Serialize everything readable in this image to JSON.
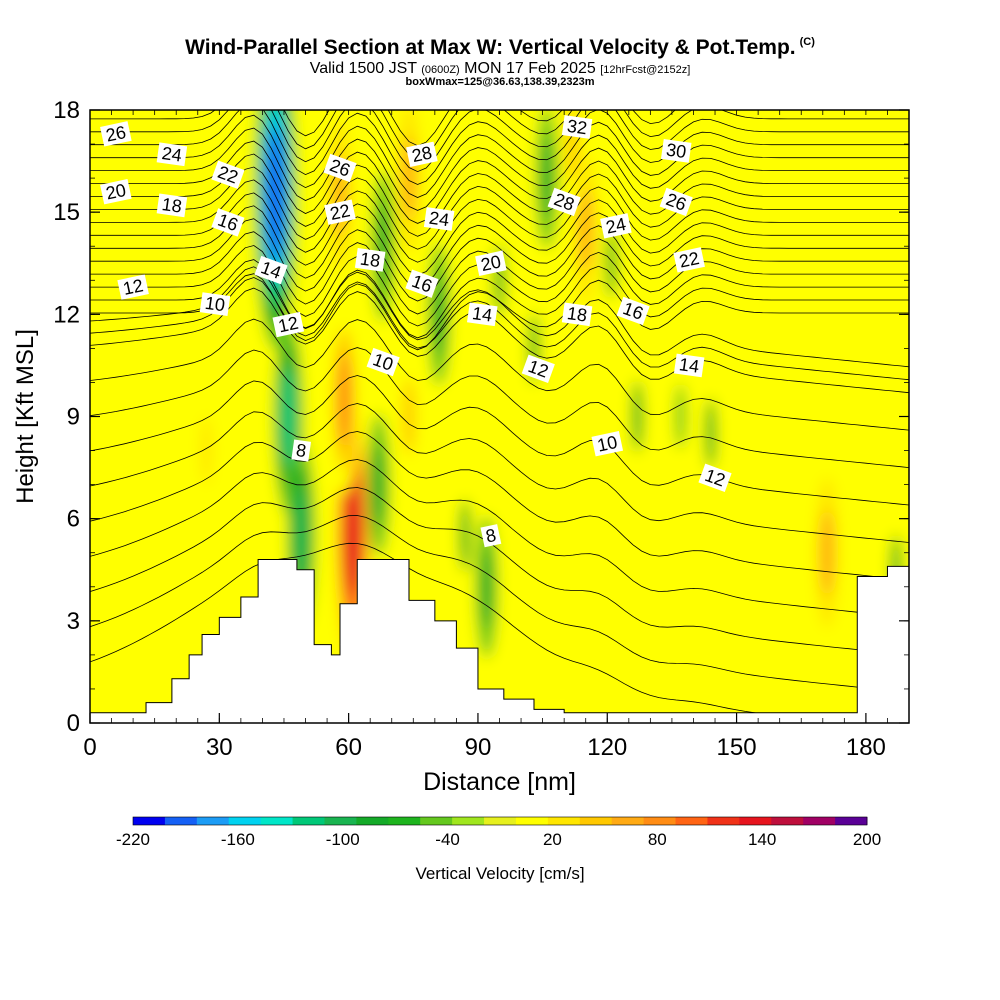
{
  "title": {
    "main": "Wind-Parallel Section at Max W: Vertical Velocity & Pot.Temp.",
    "mark": "(C)",
    "valid_prefix": "Valid 1500 JST",
    "valid_utc": "(0600Z)",
    "valid_date": "MON 17 Feb 2025",
    "forecast": "[12hrFcst@2152z]",
    "box_info": "boxWmax=125@36.63,138.39,2323m"
  },
  "chart_data": {
    "type": "heatmap",
    "xlabel": "Distance [nm]",
    "ylabel": "Height [Kft MSL]",
    "xlim": [
      0,
      190
    ],
    "ylim": [
      0,
      18
    ],
    "xticks": [
      "0",
      "30",
      "60",
      "90",
      "120",
      "150",
      "180"
    ],
    "yticks": [
      "0",
      "3",
      "6",
      "9",
      "12",
      "15",
      "18"
    ],
    "xtick_values": [
      0,
      30,
      60,
      90,
      120,
      150,
      180
    ],
    "ytick_values": [
      0,
      3,
      6,
      9,
      12,
      15,
      18
    ],
    "colorbar": {
      "label": "Vertical Velocity [cm/s]",
      "min": -220,
      "max": 200,
      "step": 20,
      "tick_labels": [
        "-220",
        "-160",
        "-100",
        "-40",
        "20",
        "80",
        "140",
        "200"
      ],
      "colors": [
        "#0000f0",
        "#1560f5",
        "#1c9cf5",
        "#00d2f0",
        "#00e6c8",
        "#00c878",
        "#19b450",
        "#14aa28",
        "#1eb41e",
        "#64c81e",
        "#a0e61e",
        "#e6f01e",
        "#ffff00",
        "#ffe600",
        "#ffc800",
        "#ffaa14",
        "#ff8c14",
        "#ff6414",
        "#f03218",
        "#e6141e",
        "#be0f3c",
        "#a00064",
        "#5a0096"
      ]
    },
    "velocity_features_cm_s": [
      {
        "x_nm": 43,
        "y_kft": 15.5,
        "peak": -200
      },
      {
        "x_nm": 46,
        "y_kft": 9.0,
        "peak": -110
      },
      {
        "x_nm": 49,
        "y_kft": 5.5,
        "peak": -100
      },
      {
        "x_nm": 61,
        "y_kft": 5.5,
        "peak": 160
      },
      {
        "x_nm": 59,
        "y_kft": 9.5,
        "peak": 100
      },
      {
        "x_nm": 58,
        "y_kft": 15.5,
        "peak": 80
      },
      {
        "x_nm": 68,
        "y_kft": 14.0,
        "peak": -80
      },
      {
        "x_nm": 67,
        "y_kft": 7.0,
        "peak": -70
      },
      {
        "x_nm": 74,
        "y_kft": 9.0,
        "peak": 60
      },
      {
        "x_nm": 74,
        "y_kft": 16.0,
        "peak": 80
      },
      {
        "x_nm": 81,
        "y_kft": 12.0,
        "peak": -70
      },
      {
        "x_nm": 87,
        "y_kft": 5.5,
        "peak": -50
      },
      {
        "x_nm": 92,
        "y_kft": 4.0,
        "peak": -70
      },
      {
        "x_nm": 95,
        "y_kft": 13.0,
        "peak": -50
      },
      {
        "x_nm": 103,
        "y_kft": 11.0,
        "peak": -45
      },
      {
        "x_nm": 106,
        "y_kft": 16.0,
        "peak": -70
      },
      {
        "x_nm": 115,
        "y_kft": 14.5,
        "peak": 80
      },
      {
        "x_nm": 112,
        "y_kft": 17.0,
        "peak": 60
      },
      {
        "x_nm": 121,
        "y_kft": 13.5,
        "peak": -45
      },
      {
        "x_nm": 127,
        "y_kft": 9.0,
        "peak": -50
      },
      {
        "x_nm": 132,
        "y_kft": 14.0,
        "peak": 30
      },
      {
        "x_nm": 137,
        "y_kft": 9.0,
        "peak": -35
      },
      {
        "x_nm": 144,
        "y_kft": 8.5,
        "peak": -45
      },
      {
        "x_nm": 171,
        "y_kft": 5.0,
        "peak": 80
      },
      {
        "x_nm": 27,
        "y_kft": 8.0,
        "peak": 40
      },
      {
        "x_nm": 19,
        "y_kft": 10.0,
        "peak": 30
      },
      {
        "x_nm": 161,
        "y_kft": 9.0,
        "peak": 25
      },
      {
        "x_nm": 187,
        "y_kft": 4.5,
        "peak": -45
      }
    ],
    "terrain_kft": [
      [
        0,
        0.3
      ],
      [
        10,
        0.3
      ],
      [
        13,
        0.6
      ],
      [
        19,
        1.3
      ],
      [
        23,
        2.0
      ],
      [
        26,
        2.6
      ],
      [
        30,
        3.1
      ],
      [
        35,
        3.7
      ],
      [
        39,
        4.8
      ],
      [
        45,
        4.8
      ],
      [
        48,
        4.5
      ],
      [
        52,
        2.3
      ],
      [
        56,
        2.0
      ],
      [
        58,
        3.5
      ],
      [
        62,
        4.8
      ],
      [
        70,
        4.8
      ],
      [
        74,
        3.6
      ],
      [
        80,
        3.0
      ],
      [
        85,
        2.2
      ],
      [
        90,
        1.0
      ],
      [
        96,
        0.7
      ],
      [
        103,
        0.4
      ],
      [
        110,
        0.3
      ],
      [
        175,
        0.3
      ],
      [
        178,
        4.3
      ],
      [
        185,
        4.6
      ],
      [
        190,
        4.6
      ]
    ],
    "theta_contour_labels": [
      {
        "text": "26",
        "x_nm": 6,
        "y_kft": 17.3
      },
      {
        "text": "24",
        "x_nm": 19,
        "y_kft": 16.7
      },
      {
        "text": "22",
        "x_nm": 32,
        "y_kft": 16.1
      },
      {
        "text": "20",
        "x_nm": 6,
        "y_kft": 15.6
      },
      {
        "text": "18",
        "x_nm": 19,
        "y_kft": 15.2
      },
      {
        "text": "16",
        "x_nm": 32,
        "y_kft": 14.7
      },
      {
        "text": "12",
        "x_nm": 10,
        "y_kft": 12.8
      },
      {
        "text": "10",
        "x_nm": 29,
        "y_kft": 12.3
      },
      {
        "text": "14",
        "x_nm": 42,
        "y_kft": 13.3
      },
      {
        "text": "12",
        "x_nm": 46,
        "y_kft": 11.7
      },
      {
        "text": "8",
        "x_nm": 49,
        "y_kft": 8.0
      },
      {
        "text": "26",
        "x_nm": 58,
        "y_kft": 16.3
      },
      {
        "text": "22",
        "x_nm": 58,
        "y_kft": 15.0
      },
      {
        "text": "18",
        "x_nm": 65,
        "y_kft": 13.6
      },
      {
        "text": "10",
        "x_nm": 68,
        "y_kft": 10.6
      },
      {
        "text": "28",
        "x_nm": 77,
        "y_kft": 16.7
      },
      {
        "text": "24",
        "x_nm": 81,
        "y_kft": 14.8
      },
      {
        "text": "16",
        "x_nm": 77,
        "y_kft": 12.9
      },
      {
        "text": "20",
        "x_nm": 93,
        "y_kft": 13.5
      },
      {
        "text": "14",
        "x_nm": 91,
        "y_kft": 12.0
      },
      {
        "text": "12",
        "x_nm": 104,
        "y_kft": 10.4
      },
      {
        "text": "8",
        "x_nm": 93,
        "y_kft": 5.5
      },
      {
        "text": "32",
        "x_nm": 113,
        "y_kft": 17.5
      },
      {
        "text": "28",
        "x_nm": 110,
        "y_kft": 15.3
      },
      {
        "text": "24",
        "x_nm": 122,
        "y_kft": 14.6
      },
      {
        "text": "18",
        "x_nm": 113,
        "y_kft": 12.0
      },
      {
        "text": "16",
        "x_nm": 126,
        "y_kft": 12.1
      },
      {
        "text": "10",
        "x_nm": 120,
        "y_kft": 8.2
      },
      {
        "text": "30",
        "x_nm": 136,
        "y_kft": 16.8
      },
      {
        "text": "26",
        "x_nm": 136,
        "y_kft": 15.3
      },
      {
        "text": "22",
        "x_nm": 139,
        "y_kft": 13.6
      },
      {
        "text": "14",
        "x_nm": 139,
        "y_kft": 10.5
      },
      {
        "text": "12",
        "x_nm": 145,
        "y_kft": 7.2
      }
    ],
    "grid": false,
    "legend": "colorbar bottom"
  }
}
